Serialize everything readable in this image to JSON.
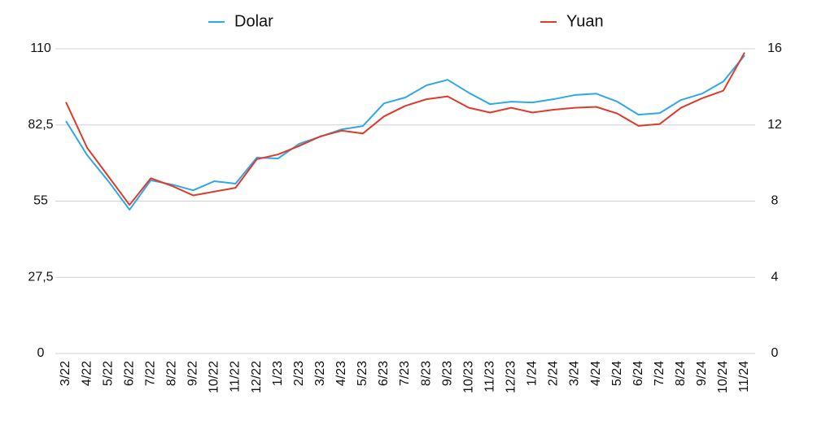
{
  "chart_data": {
    "type": "line",
    "categories": [
      "3/22",
      "4/22",
      "5/22",
      "6/22",
      "7/22",
      "8/22",
      "9/22",
      "10/22",
      "11/22",
      "12/22",
      "1/23",
      "2/23",
      "3/23",
      "4/23",
      "5/23",
      "6/23",
      "7/23",
      "8/23",
      "9/23",
      "10/23",
      "11/23",
      "12/23",
      "1/24",
      "2/24",
      "3/24",
      "4/24",
      "5/24",
      "6/24",
      "7/24",
      "8/24",
      "9/24",
      "10/24",
      "11/24"
    ],
    "series": [
      {
        "name": "Dolar",
        "color": "#2ea8e8",
        "axis": "y",
        "values": [
          83.9,
          71.6,
          62.2,
          51.9,
          62.5,
          61,
          58.9,
          62.2,
          61.3,
          70.7,
          70.4,
          75.7,
          78.3,
          80.9,
          82.1,
          90.3,
          92.4,
          96.8,
          98.8,
          94.1,
          90,
          90.9,
          90.6,
          91.8,
          93.3,
          93.8,
          90.9,
          86.2,
          86.8,
          91.5,
          93.8,
          98.2,
          107.6
        ]
      },
      {
        "name": "Yuan",
        "color": "#e03a2a",
        "axis": "y2",
        "values": [
          13.2,
          10.8,
          9.3,
          7.8,
          9.2,
          8.8,
          8.3,
          8.5,
          8.7,
          10.2,
          10.45,
          10.9,
          11.4,
          11.7,
          11.55,
          12.45,
          13.0,
          13.35,
          13.5,
          12.9,
          12.65,
          12.9,
          12.65,
          12.8,
          12.9,
          12.95,
          12.6,
          11.95,
          12.05,
          12.9,
          13.4,
          13.8,
          15.8
        ]
      }
    ],
    "ylim": [
      0,
      110
    ],
    "yticks": [
      0,
      {
        "value": 27.5,
        "label": "27,5"
      },
      55,
      {
        "value": 82.5,
        "label": "82,5"
      },
      110
    ],
    "y2lim": [
      0,
      16
    ],
    "y2ticks": [
      0,
      4,
      8,
      12,
      16
    ],
    "grid": true,
    "legend": "top"
  }
}
